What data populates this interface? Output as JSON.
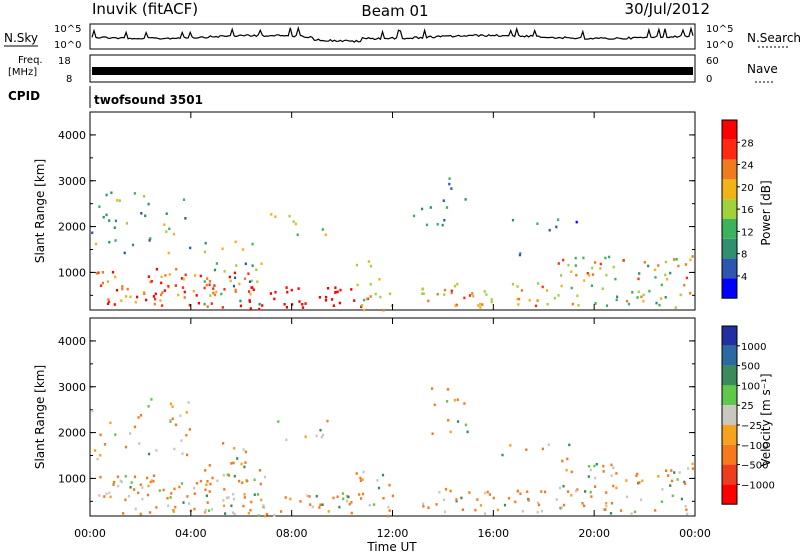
{
  "header": {
    "station": "Inuvik (fitACF)",
    "beam": "Beam 01",
    "date": "30/Jul/2012"
  },
  "noise_panel": {
    "left_label": "N.Sky",
    "right_label": "N.Search",
    "y_ticks_left": [
      "10^5",
      "10^0"
    ],
    "y_ticks_right": [
      "10^5",
      "10^0"
    ]
  },
  "freq_panel": {
    "left_label_1": "Freq.",
    "left_label_2": "[MHz]",
    "right_label": "Nave",
    "y_ticks_left": [
      "18",
      "8"
    ],
    "y_ticks_right": [
      "60",
      "0"
    ]
  },
  "cpid": {
    "label": "CPID",
    "value": "twofsound 3501"
  },
  "colors": {
    "power": [
      "#0000ff",
      "#2e55b0",
      "#2f8f6e",
      "#3cb25f",
      "#a0d23c",
      "#f0b419",
      "#f07a1e",
      "#ff2a14",
      "#ff0000"
    ],
    "velocity": [
      "#ff0000",
      "#f03c1e",
      "#f57a1e",
      "#f5a21e",
      "#c8c8c0",
      "#5fc84b",
      "#3a8a5a",
      "#2a6aa0",
      "#2030a0"
    ]
  },
  "chart_data": [
    {
      "type": "heatmap",
      "name_key": "power",
      "ylabel": "Slant Range [km]",
      "colorbar_label": "Power [dB]",
      "colorbar_ticks": [
        "28",
        "24",
        "20",
        "16",
        "12",
        "8",
        "4"
      ],
      "y_ticks": [
        "4000",
        "3000",
        "2000",
        "1000"
      ],
      "ylim": [
        180,
        4500
      ],
      "xlim": [
        0,
        24
      ]
    },
    {
      "type": "heatmap",
      "name_key": "velocity",
      "ylabel": "Slant Range [km]",
      "colorbar_label": "Velocity [m s⁻¹]",
      "colorbar_ticks": [
        "1000",
        "500",
        "100",
        "25",
        "−25",
        "−100",
        "−500",
        "−1000"
      ],
      "y_ticks": [
        "4000",
        "3000",
        "2000",
        "1000"
      ],
      "ylim": [
        180,
        4500
      ],
      "xlim": [
        0,
        24
      ],
      "x_ticks": [
        "00:00",
        "04:00",
        "08:00",
        "12:00",
        "16:00",
        "20:00",
        "00:00"
      ],
      "xlabel": "Time UT"
    }
  ]
}
